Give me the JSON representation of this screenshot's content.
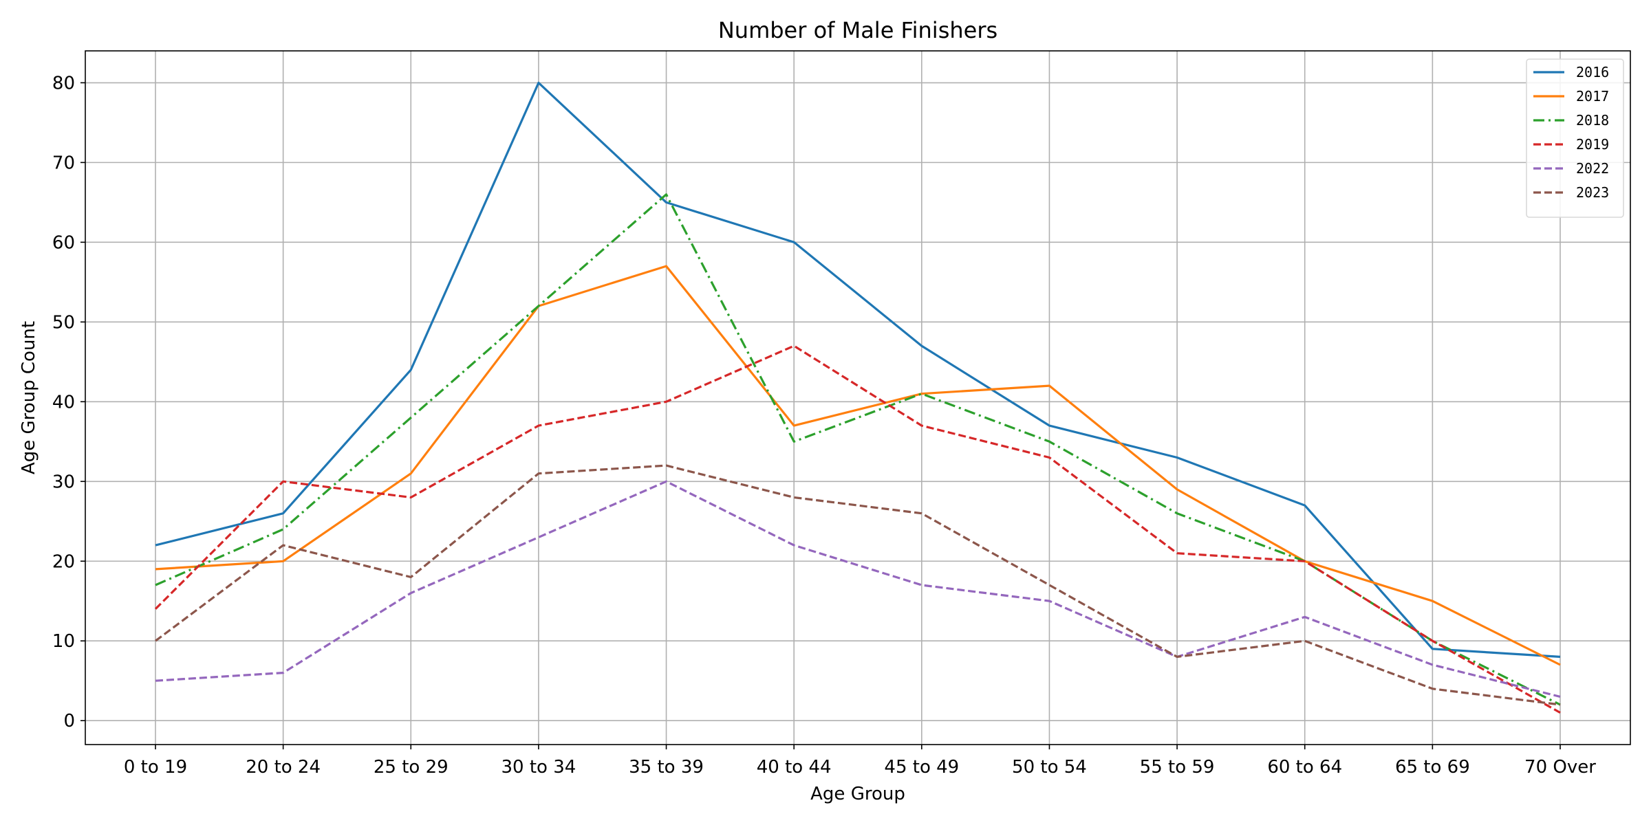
{
  "chart_data": {
    "type": "line",
    "title": "Number of Male Finishers",
    "xlabel": "Age Group",
    "ylabel": "Age Group Count",
    "categories": [
      "0 to 19",
      "20 to 24",
      "25 to 29",
      "30 to 34",
      "35 to 39",
      "40 to 44",
      "45 to 49",
      "50 to 54",
      "55 to 59",
      "60 to 64",
      "65 to 69",
      "70 Over"
    ],
    "ylim": [
      -3,
      84
    ],
    "yticks": [
      0,
      10,
      20,
      30,
      40,
      50,
      60,
      70,
      80
    ],
    "grid": true,
    "legend_position": "top-right",
    "series": [
      {
        "name": "2016",
        "color": "#1f77b4",
        "style": "solid",
        "values": [
          22,
          26,
          44,
          80,
          65,
          60,
          47,
          37,
          33,
          27,
          9,
          8
        ]
      },
      {
        "name": "2017",
        "color": "#ff7f0e",
        "style": "solid",
        "values": [
          19,
          20,
          31,
          52,
          57,
          37,
          41,
          42,
          29,
          20,
          15,
          7
        ]
      },
      {
        "name": "2018",
        "color": "#2ca02c",
        "style": "dashdot",
        "values": [
          17,
          24,
          38,
          52,
          66,
          35,
          41,
          35,
          26,
          20,
          10,
          2
        ]
      },
      {
        "name": "2019",
        "color": "#d62728",
        "style": "dashed",
        "values": [
          14,
          30,
          28,
          37,
          40,
          47,
          37,
          33,
          21,
          20,
          10,
          1
        ]
      },
      {
        "name": "2022",
        "color": "#9467bd",
        "style": "dashed",
        "values": [
          5,
          6,
          16,
          23,
          30,
          22,
          17,
          15,
          8,
          13,
          7,
          3
        ]
      },
      {
        "name": "2023",
        "color": "#8c564b",
        "style": "dashed",
        "values": [
          10,
          22,
          18,
          31,
          32,
          28,
          26,
          17,
          8,
          10,
          4,
          2
        ]
      }
    ]
  }
}
